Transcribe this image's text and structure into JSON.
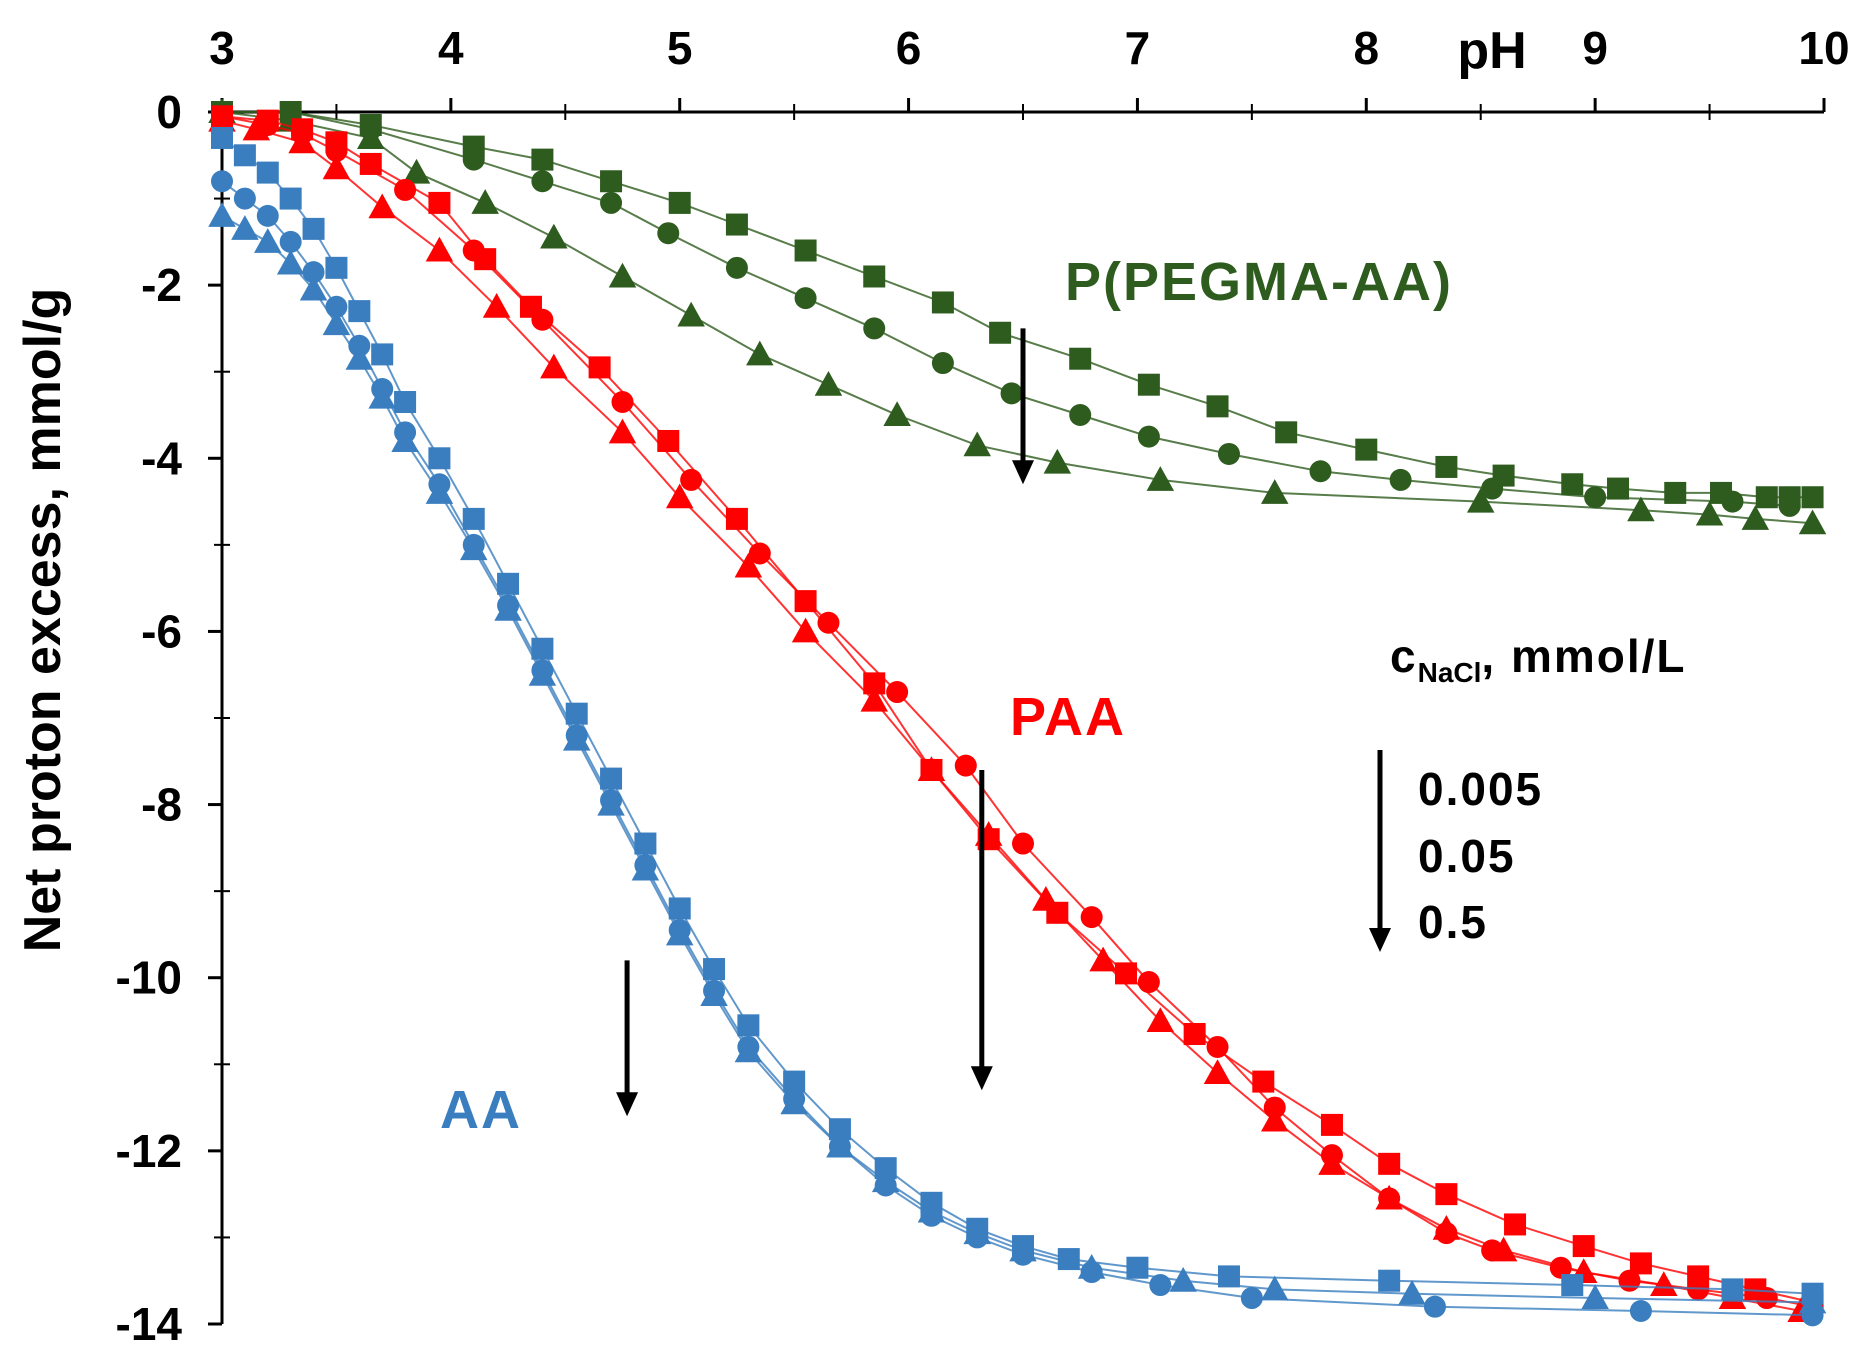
{
  "chart_data": {
    "type": "line",
    "title": "",
    "xlabel": "pH",
    "ylabel": "Net proton excess, mmol/g",
    "xlim": [
      3,
      10
    ],
    "ylim": [
      -14,
      0
    ],
    "x_ticks": [
      "3",
      "4",
      "5",
      "6",
      "7",
      "8",
      "9",
      "10"
    ],
    "y_ticks": [
      "0",
      "-2",
      "-4",
      "-6",
      "-8",
      "-10",
      "-12",
      "-14"
    ],
    "x_axis_position": "top",
    "groups": [
      {
        "label": "P(PEGMA-AA)",
        "color": "#2e5c1e",
        "series": [
          {
            "name": "0.005",
            "marker": "square",
            "x": [
              3.0,
              3.3,
              3.65,
              4.1,
              4.4,
              4.7,
              5.0,
              5.25,
              5.55,
              5.85,
              6.15,
              6.4,
              6.75,
              7.05,
              7.35,
              7.65,
              8.0,
              8.35,
              8.6,
              8.9,
              9.1,
              9.35,
              9.55,
              9.75,
              9.85,
              9.95
            ],
            "y": [
              0,
              0,
              -0.15,
              -0.4,
              -0.55,
              -0.8,
              -1.05,
              -1.3,
              -1.6,
              -1.9,
              -2.2,
              -2.55,
              -2.85,
              -3.15,
              -3.4,
              -3.7,
              -3.9,
              -4.1,
              -4.2,
              -4.3,
              -4.35,
              -4.4,
              -4.4,
              -4.45,
              -4.45,
              -4.45
            ]
          },
          {
            "name": "0.05",
            "marker": "circle",
            "x": [
              3.0,
              3.3,
              3.65,
              4.1,
              4.4,
              4.7,
              4.95,
              5.25,
              5.55,
              5.85,
              6.15,
              6.45,
              6.75,
              7.05,
              7.4,
              7.8,
              8.15,
              8.55,
              9.0,
              9.6,
              9.85
            ],
            "y": [
              0,
              0,
              -0.2,
              -0.55,
              -0.8,
              -1.05,
              -1.4,
              -1.8,
              -2.15,
              -2.5,
              -2.9,
              -3.25,
              -3.5,
              -3.75,
              -3.95,
              -4.15,
              -4.25,
              -4.35,
              -4.45,
              -4.5,
              -4.55
            ]
          },
          {
            "name": "0.5",
            "marker": "triangle",
            "x": [
              3.0,
              3.3,
              3.65,
              3.85,
              4.15,
              4.45,
              4.75,
              5.05,
              5.35,
              5.65,
              5.95,
              6.3,
              6.65,
              7.1,
              7.6,
              8.5,
              9.2,
              9.5,
              9.7,
              9.95
            ],
            "y": [
              0,
              -0.1,
              -0.3,
              -0.7,
              -1.05,
              -1.45,
              -1.9,
              -2.35,
              -2.8,
              -3.15,
              -3.5,
              -3.85,
              -4.05,
              -4.25,
              -4.4,
              -4.5,
              -4.6,
              -4.65,
              -4.7,
              -4.75
            ]
          }
        ]
      },
      {
        "label": "PAA",
        "color": "#ff0000",
        "series": [
          {
            "name": "0.005",
            "marker": "square",
            "x": [
              3.0,
              3.2,
              3.35,
              3.5,
              3.65,
              3.95,
              4.15,
              4.35,
              4.65,
              4.95,
              5.25,
              5.55,
              5.85,
              6.1,
              6.35,
              6.65,
              6.95,
              7.25,
              7.55,
              7.85,
              8.1,
              8.35,
              8.65,
              8.95,
              9.2,
              9.45,
              9.7,
              9.95
            ],
            "y": [
              -0.05,
              -0.1,
              -0.2,
              -0.35,
              -0.6,
              -1.05,
              -1.7,
              -2.25,
              -2.95,
              -3.8,
              -4.7,
              -5.65,
              -6.6,
              -7.6,
              -8.4,
              -9.25,
              -9.95,
              -10.65,
              -11.2,
              -11.7,
              -12.15,
              -12.5,
              -12.85,
              -13.1,
              -13.3,
              -13.45,
              -13.6,
              -13.75
            ]
          },
          {
            "name": "0.05",
            "marker": "circle",
            "x": [
              3.0,
              3.2,
              3.35,
              3.5,
              3.8,
              4.1,
              4.4,
              4.75,
              5.05,
              5.35,
              5.65,
              5.95,
              6.25,
              6.5,
              6.8,
              7.05,
              7.35,
              7.6,
              7.85,
              8.1,
              8.35,
              8.55,
              8.85,
              9.15,
              9.45,
              9.75,
              9.95
            ],
            "y": [
              -0.05,
              -0.15,
              -0.25,
              -0.45,
              -0.9,
              -1.6,
              -2.4,
              -3.35,
              -4.25,
              -5.1,
              -5.9,
              -6.7,
              -7.55,
              -8.45,
              -9.3,
              -10.05,
              -10.8,
              -11.5,
              -12.05,
              -12.55,
              -12.95,
              -13.15,
              -13.35,
              -13.5,
              -13.6,
              -13.7,
              -13.8
            ]
          },
          {
            "name": "0.5",
            "marker": "triangle",
            "x": [
              3.0,
              3.15,
              3.35,
              3.5,
              3.7,
              3.95,
              4.2,
              4.45,
              4.75,
              5.0,
              5.3,
              5.55,
              5.85,
              6.1,
              6.35,
              6.6,
              6.85,
              7.1,
              7.35,
              7.6,
              7.85,
              8.1,
              8.35,
              8.6,
              8.95,
              9.3,
              9.6,
              9.9
            ],
            "y": [
              -0.1,
              -0.2,
              -0.35,
              -0.65,
              -1.1,
              -1.6,
              -2.25,
              -2.95,
              -3.7,
              -4.45,
              -5.25,
              -6.0,
              -6.8,
              -7.6,
              -8.35,
              -9.1,
              -9.8,
              -10.5,
              -11.1,
              -11.65,
              -12.15,
              -12.55,
              -12.9,
              -13.15,
              -13.4,
              -13.55,
              -13.7,
              -13.85
            ]
          }
        ]
      },
      {
        "label": "AA",
        "color": "#3a7ebf",
        "series": [
          {
            "name": "0.005",
            "marker": "square",
            "x": [
              3.0,
              3.1,
              3.2,
              3.3,
              3.4,
              3.5,
              3.6,
              3.7,
              3.8,
              3.95,
              4.1,
              4.25,
              4.4,
              4.55,
              4.7,
              4.85,
              5.0,
              5.15,
              5.3,
              5.5,
              5.7,
              5.9,
              6.1,
              6.3,
              6.5,
              6.7,
              7.0,
              7.4,
              8.1,
              8.9,
              9.6,
              9.95
            ],
            "y": [
              -0.3,
              -0.5,
              -0.7,
              -1.0,
              -1.35,
              -1.8,
              -2.3,
              -2.8,
              -3.35,
              -4.0,
              -4.7,
              -5.45,
              -6.2,
              -6.95,
              -7.7,
              -8.45,
              -9.2,
              -9.9,
              -10.55,
              -11.2,
              -11.75,
              -12.2,
              -12.6,
              -12.9,
              -13.1,
              -13.25,
              -13.35,
              -13.45,
              -13.5,
              -13.55,
              -13.6,
              -13.65
            ]
          },
          {
            "name": "0.05",
            "marker": "circle",
            "x": [
              3.0,
              3.1,
              3.2,
              3.3,
              3.4,
              3.5,
              3.6,
              3.7,
              3.8,
              3.95,
              4.1,
              4.25,
              4.4,
              4.55,
              4.7,
              4.85,
              5.0,
              5.15,
              5.3,
              5.5,
              5.7,
              5.9,
              6.1,
              6.3,
              6.5,
              6.8,
              7.1,
              7.5,
              8.3,
              9.2,
              9.95
            ],
            "y": [
              -0.8,
              -1.0,
              -1.2,
              -1.5,
              -1.85,
              -2.25,
              -2.7,
              -3.2,
              -3.7,
              -4.3,
              -5.0,
              -5.7,
              -6.45,
              -7.2,
              -7.95,
              -8.7,
              -9.45,
              -10.15,
              -10.8,
              -11.4,
              -11.95,
              -12.4,
              -12.75,
              -13.0,
              -13.2,
              -13.4,
              -13.55,
              -13.7,
              -13.8,
              -13.85,
              -13.9
            ]
          },
          {
            "name": "0.5",
            "marker": "triangle",
            "x": [
              3.0,
              3.1,
              3.2,
              3.3,
              3.4,
              3.5,
              3.6,
              3.7,
              3.8,
              3.95,
              4.1,
              4.25,
              4.4,
              4.55,
              4.7,
              4.85,
              5.0,
              5.15,
              5.3,
              5.5,
              5.7,
              5.9,
              6.1,
              6.3,
              6.5,
              6.8,
              7.2,
              7.6,
              8.2,
              9.0,
              9.95
            ],
            "y": [
              -1.2,
              -1.35,
              -1.5,
              -1.75,
              -2.05,
              -2.45,
              -2.85,
              -3.3,
              -3.8,
              -4.4,
              -5.05,
              -5.75,
              -6.5,
              -7.25,
              -8.0,
              -8.75,
              -9.5,
              -10.2,
              -10.85,
              -11.45,
              -11.95,
              -12.35,
              -12.7,
              -12.95,
              -13.15,
              -13.35,
              -13.5,
              -13.6,
              -13.65,
              -13.7,
              -13.75
            ]
          }
        ]
      }
    ],
    "legend": {
      "title_main": "c",
      "title_sub": "NaCl",
      "title_rest": ", mmol/L",
      "entries": [
        "0.005",
        "0.05",
        "0.5"
      ],
      "placement": "right-middle"
    },
    "annotations": [
      {
        "type": "arrow",
        "group": "P(PEGMA-AA)",
        "x": 6.5,
        "y_from": -2.5,
        "y_to": -4.3
      },
      {
        "type": "arrow",
        "group": "PAA",
        "x": 6.32,
        "y_from": -7.6,
        "y_to": -11.3
      },
      {
        "type": "arrow",
        "group": "AA",
        "x": 4.77,
        "y_from": -9.8,
        "y_to": -11.6
      }
    ]
  }
}
